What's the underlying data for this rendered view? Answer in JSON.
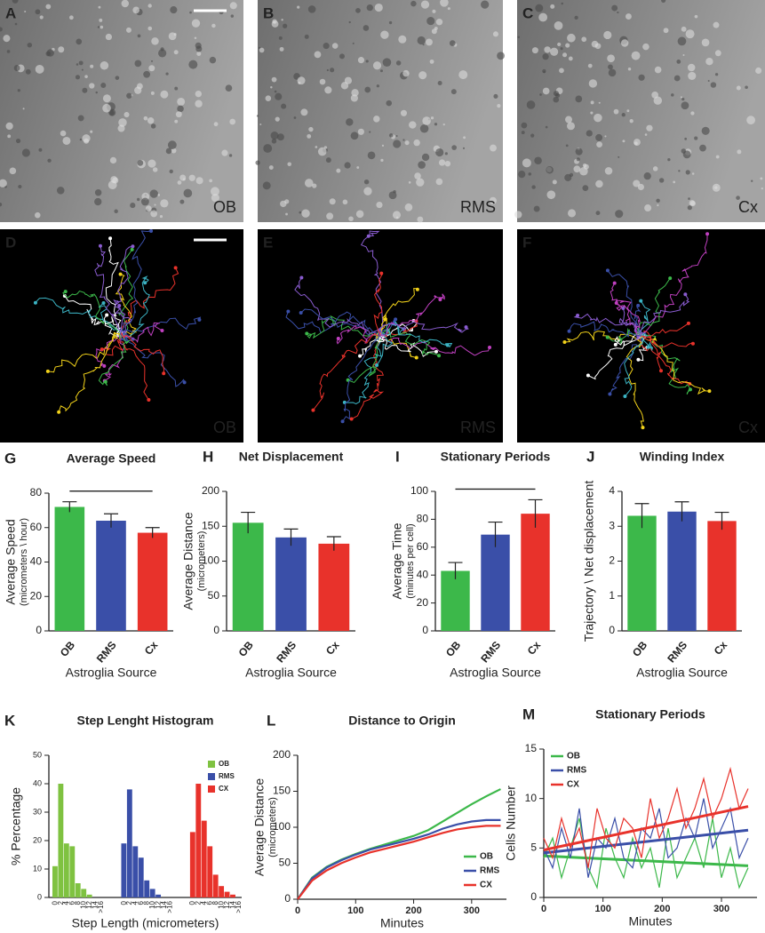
{
  "images": [
    {
      "letter": "A",
      "label": "OB"
    },
    {
      "letter": "B",
      "label": "RMS"
    },
    {
      "letter": "C",
      "label": "Cx"
    },
    {
      "letter": "D",
      "label": "OB"
    },
    {
      "letter": "E",
      "label": "RMS"
    },
    {
      "letter": "F",
      "label": "Cx"
    }
  ],
  "chart_data": [
    {
      "type": "bar",
      "letter": "G",
      "title": "Average Speed",
      "ylabel": [
        "Average Speed",
        "(micrometers \\ hour)"
      ],
      "xlabel": "Astroglia Source",
      "categories": [
        "OB",
        "RMS",
        "Cx"
      ],
      "values": [
        72,
        64,
        57
      ],
      "errors": [
        3,
        4,
        3
      ],
      "colors": [
        "#3cb84a",
        "#3a4fa8",
        "#e8322b"
      ],
      "ylim": [
        0,
        80
      ],
      "yticks": [
        0,
        20,
        40,
        60,
        80
      ],
      "significance_bar": true
    },
    {
      "type": "bar",
      "letter": "H",
      "title": "Net Displacement",
      "ylabel": [
        "Average Distance",
        "(micrometers)"
      ],
      "xlabel": "Astroglia Source",
      "categories": [
        "OB",
        "RMS",
        "Cx"
      ],
      "values": [
        155,
        134,
        125
      ],
      "errors": [
        15,
        12,
        10
      ],
      "colors": [
        "#3cb84a",
        "#3a4fa8",
        "#e8322b"
      ],
      "ylim": [
        0,
        200
      ],
      "yticks": [
        0,
        50,
        100,
        150,
        200
      ],
      "significance_bar": false
    },
    {
      "type": "bar",
      "letter": "I",
      "title": "Stationary Periods",
      "ylabel": [
        "Average Time",
        "(minutes per cell)"
      ],
      "xlabel": "Astroglia Source",
      "categories": [
        "OB",
        "RMS",
        "Cx"
      ],
      "values": [
        43,
        69,
        84
      ],
      "errors": [
        6,
        9,
        10
      ],
      "colors": [
        "#3cb84a",
        "#3a4fa8",
        "#e8322b"
      ],
      "ylim": [
        0,
        100
      ],
      "yticks": [
        0,
        20,
        40,
        60,
        80,
        100
      ],
      "significance_bar": true
    },
    {
      "type": "bar",
      "letter": "J",
      "title": "Winding Index",
      "ylabel": [
        "Trajectory \\ Net displacement"
      ],
      "xlabel": "Astroglia Source",
      "categories": [
        "OB",
        "RMS",
        "Cx"
      ],
      "values": [
        3.3,
        3.42,
        3.15
      ],
      "errors": [
        0.35,
        0.28,
        0.25
      ],
      "colors": [
        "#3cb84a",
        "#3a4fa8",
        "#e8322b"
      ],
      "ylim": [
        0,
        4
      ],
      "yticks": [
        0,
        1,
        2,
        3,
        4
      ],
      "significance_bar": false
    },
    {
      "type": "histogram",
      "letter": "K",
      "title": "Step Lenght Histogram",
      "ylabel": [
        "% Percentage"
      ],
      "xlabel": "Step Length (micrometers)",
      "categories": [
        "0",
        "2",
        "4",
        "6",
        "8",
        "10",
        "12",
        "14",
        ">16"
      ],
      "series": [
        {
          "name": "OB",
          "color": "#7fc241",
          "values": [
            11,
            40,
            19,
            18,
            5,
            3,
            1,
            0,
            0
          ]
        },
        {
          "name": "RMS",
          "color": "#3a4fa8",
          "values": [
            19,
            38,
            18,
            14,
            6,
            3,
            1,
            0,
            0
          ]
        },
        {
          "name": "CX",
          "color": "#e8322b",
          "values": [
            23,
            40,
            27,
            18,
            8,
            4,
            2,
            1,
            0
          ]
        }
      ],
      "ylim": [
        0,
        50
      ],
      "yticks": [
        0,
        10,
        20,
        30,
        40,
        50
      ],
      "legend": "upper right"
    },
    {
      "type": "line",
      "letter": "L",
      "title": "Distance to Origin",
      "ylabel": [
        "Average Distance",
        "(micrometers)"
      ],
      "xlabel": "Minutes",
      "x": [
        0,
        25,
        50,
        75,
        100,
        125,
        150,
        175,
        200,
        225,
        250,
        275,
        300,
        325,
        350
      ],
      "series": [
        {
          "name": "OB",
          "color": "#3cb84a",
          "values": [
            0,
            30,
            45,
            55,
            63,
            70,
            76,
            82,
            88,
            96,
            108,
            120,
            132,
            143,
            153
          ]
        },
        {
          "name": "RMS",
          "color": "#3a4fa8",
          "values": [
            0,
            29,
            44,
            54,
            62,
            69,
            74,
            79,
            84,
            90,
            98,
            104,
            108,
            110,
            110
          ]
        },
        {
          "name": "CX",
          "color": "#e8322b",
          "values": [
            0,
            26,
            40,
            50,
            58,
            65,
            70,
            75,
            80,
            86,
            92,
            97,
            100,
            102,
            102
          ]
        }
      ],
      "xlim": [
        0,
        360
      ],
      "xticks": [
        0,
        100,
        200,
        300
      ],
      "ylim": [
        0,
        200
      ],
      "yticks": [
        0,
        50,
        100,
        150,
        200
      ],
      "legend": "lower right"
    },
    {
      "type": "line",
      "letter": "M",
      "title": "Stationary Periods",
      "ylabel": [
        "Cells Number"
      ],
      "xlabel": "Minutes",
      "x": [
        0,
        15,
        30,
        45,
        60,
        75,
        90,
        105,
        120,
        135,
        150,
        165,
        180,
        195,
        210,
        225,
        240,
        255,
        270,
        285,
        300,
        315,
        330,
        345
      ],
      "series": [
        {
          "name": "OB",
          "color": "#3cb84a",
          "values": [
            4,
            6,
            2,
            5,
            8,
            3,
            1,
            7,
            4,
            2,
            6,
            3,
            5,
            1,
            7,
            2,
            4,
            6,
            3,
            8,
            2,
            5,
            1,
            3
          ],
          "fit": [
            4.2,
            3.2
          ]
        },
        {
          "name": "RMS",
          "color": "#3a4fa8",
          "values": [
            5,
            3,
            7,
            4,
            9,
            2,
            6,
            5,
            8,
            4,
            3,
            7,
            6,
            9,
            4,
            5,
            8,
            6,
            10,
            5,
            7,
            9,
            4,
            6
          ],
          "fit": [
            4.5,
            6.8
          ]
        },
        {
          "name": "CX",
          "color": "#e8322b",
          "values": [
            6,
            4,
            8,
            5,
            7,
            3,
            9,
            6,
            5,
            8,
            7,
            4,
            10,
            6,
            8,
            11,
            7,
            9,
            12,
            8,
            10,
            13,
            9,
            11
          ],
          "fit": [
            4.8,
            9.2
          ]
        }
      ],
      "xlim": [
        0,
        360
      ],
      "xticks": [
        0,
        100,
        200,
        300
      ],
      "ylim": [
        0,
        15
      ],
      "yticks": [
        0,
        5,
        10,
        15
      ],
      "legend": "upper left"
    }
  ]
}
